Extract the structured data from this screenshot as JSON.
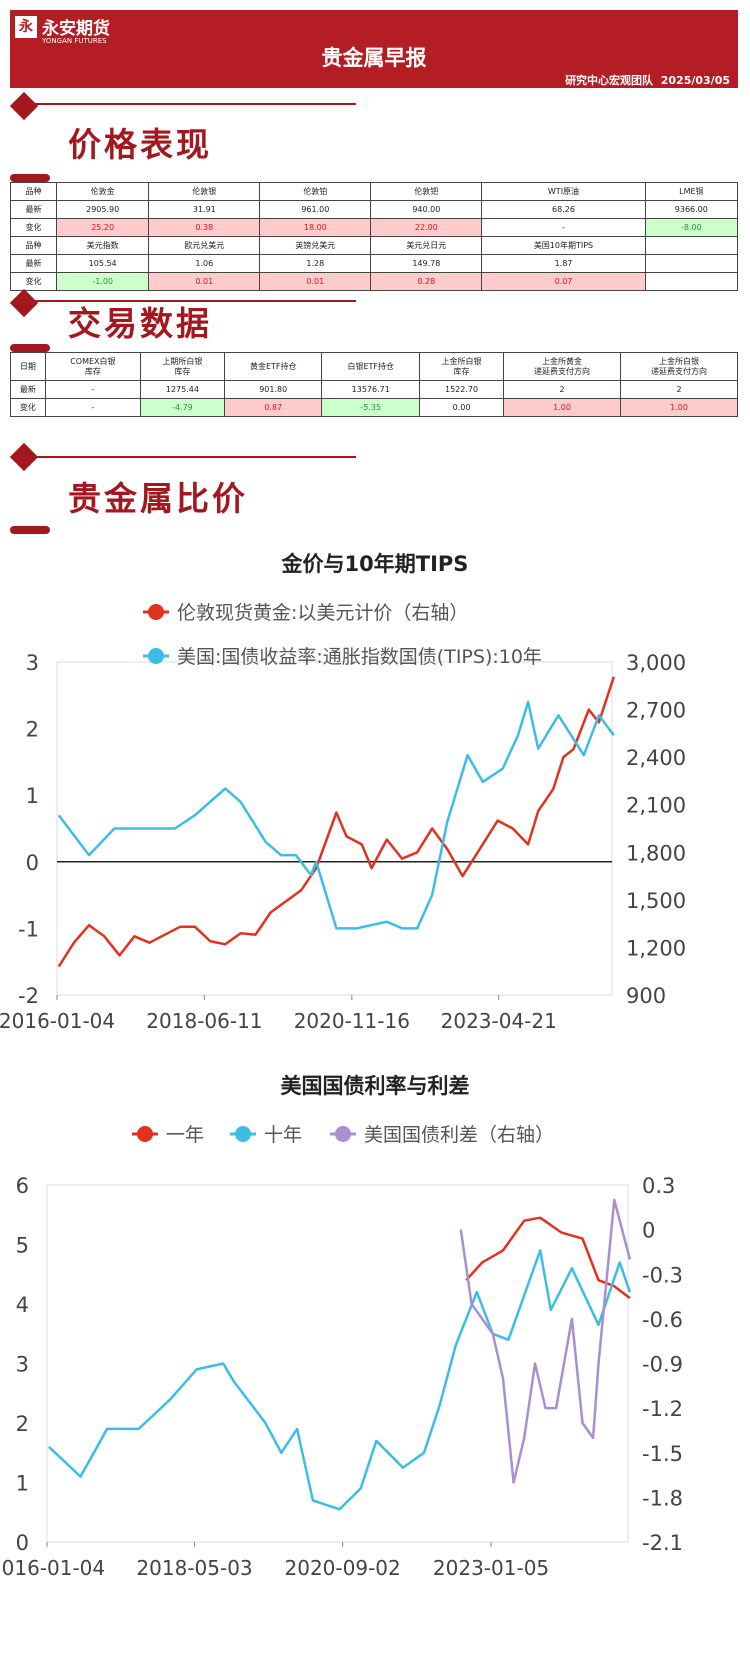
{
  "header": {
    "logo_mark": "永",
    "logo_cn": "永安期货",
    "logo_en": "YONGAN FUTURES",
    "title": "贵金属早报",
    "team": "研究中心宏观团队",
    "date": "2025/03/05"
  },
  "sections": {
    "price": "价格表现",
    "trade": "交易数据",
    "ratio": "贵金属比价"
  },
  "colors": {
    "brand": "#b41d24",
    "up_bg": "#ffcccc",
    "down_bg": "#ccffcc",
    "gold": "#e0321c",
    "tips": "#3dbde6",
    "spread": "#a98fd0"
  },
  "price_table": {
    "rows": [
      {
        "label": "品种",
        "cells": [
          {
            "v": "伦敦金"
          },
          {
            "v": "伦敦银"
          },
          {
            "v": "伦敦铂"
          },
          {
            "v": "伦敦钯"
          },
          {
            "v": "WTI原油"
          },
          {
            "v": "LME铜"
          }
        ]
      },
      {
        "label": "最新",
        "cells": [
          {
            "v": "2905.90"
          },
          {
            "v": "31.91"
          },
          {
            "v": "961.00"
          },
          {
            "v": "940.00"
          },
          {
            "v": "68.26"
          },
          {
            "v": "9366.00"
          }
        ]
      },
      {
        "label": "变化",
        "cells": [
          {
            "v": "25.20",
            "s": "up"
          },
          {
            "v": "0.38",
            "s": "up"
          },
          {
            "v": "18.00",
            "s": "up"
          },
          {
            "v": "22.00",
            "s": "up"
          },
          {
            "v": "-"
          },
          {
            "v": "-8.00",
            "s": "dn"
          }
        ]
      },
      {
        "label": "品种",
        "cells": [
          {
            "v": "美元指数"
          },
          {
            "v": "欧元兑美元"
          },
          {
            "v": "英镑兑美元"
          },
          {
            "v": "美元兑日元"
          },
          {
            "v": "美国10年期TIPS"
          },
          {
            "v": ""
          }
        ]
      },
      {
        "label": "最新",
        "cells": [
          {
            "v": "105.54"
          },
          {
            "v": "1.06"
          },
          {
            "v": "1.28"
          },
          {
            "v": "149.78"
          },
          {
            "v": "1.87"
          },
          {
            "v": ""
          }
        ]
      },
      {
        "label": "变化",
        "cells": [
          {
            "v": "-1.00",
            "s": "dn"
          },
          {
            "v": "0.01",
            "s": "up"
          },
          {
            "v": "0.01",
            "s": "up"
          },
          {
            "v": "0.28",
            "s": "up"
          },
          {
            "v": "0.07",
            "s": "up"
          },
          {
            "v": ""
          }
        ]
      }
    ]
  },
  "trade_table": {
    "header": [
      "日期",
      "COMEX白银\n库存",
      "上期所白银\n库存",
      "黄金ETF持仓",
      "白银ETF持仓",
      "上金所白银\n库存",
      "上金所黄金\n递延费支付方向",
      "上金所白银\n递延费支付方向"
    ],
    "rows": [
      {
        "label": "最新",
        "cells": [
          {
            "v": "-"
          },
          {
            "v": "1275.44"
          },
          {
            "v": "901.80"
          },
          {
            "v": "13576.71"
          },
          {
            "v": "1522.70"
          },
          {
            "v": "2"
          },
          {
            "v": "2"
          }
        ]
      },
      {
        "label": "变化",
        "cells": [
          {
            "v": "-"
          },
          {
            "v": "-4.79",
            "s": "dn"
          },
          {
            "v": "0.87",
            "s": "up"
          },
          {
            "v": "-5.35",
            "s": "dn"
          },
          {
            "v": "0.00"
          },
          {
            "v": "1.00",
            "s": "up"
          },
          {
            "v": "1.00",
            "s": "up"
          }
        ]
      }
    ]
  },
  "chart_data": [
    {
      "type": "line",
      "title": "金价与10年期TIPS",
      "x_ticks": [
        "2016-01-04",
        "2018-06-11",
        "2020-11-16",
        "2023-04-21"
      ],
      "xlim": [
        "2016-01-04",
        "2025-03-04"
      ],
      "y_left": {
        "lim": [
          -2,
          3
        ],
        "ticks": [
          "3",
          "2",
          "1",
          "0",
          "-1",
          "-2"
        ]
      },
      "y_right": {
        "lim": [
          900,
          3000
        ],
        "ticks": [
          "3,000",
          "2,700",
          "2,400",
          "2,100",
          "1,800",
          "1,500",
          "1,200",
          "900"
        ]
      },
      "legend_position": "top",
      "series": [
        {
          "name": "伦敦现货黄金:以美元计价（右轴）",
          "axis": "right",
          "color": "#e0321c",
          "x": [
            "2016-01",
            "2016-04",
            "2016-07",
            "2016-10",
            "2017-01",
            "2017-04",
            "2017-07",
            "2017-10",
            "2018-01",
            "2018-04",
            "2018-07",
            "2018-10",
            "2019-01",
            "2019-04",
            "2019-07",
            "2019-10",
            "2020-01",
            "2020-04",
            "2020-08",
            "2020-10",
            "2021-01",
            "2021-03",
            "2021-06",
            "2021-09",
            "2021-12",
            "2022-03",
            "2022-06",
            "2022-09",
            "2022-12",
            "2023-04",
            "2023-07",
            "2023-10",
            "2023-12",
            "2024-03",
            "2024-05",
            "2024-07",
            "2024-10",
            "2024-12",
            "2025-03"
          ],
          "y": [
            1080,
            1230,
            1340,
            1270,
            1150,
            1270,
            1230,
            1280,
            1330,
            1330,
            1240,
            1220,
            1290,
            1280,
            1420,
            1490,
            1560,
            1700,
            2050,
            1900,
            1850,
            1700,
            1880,
            1760,
            1800,
            1950,
            1820,
            1650,
            1800,
            2000,
            1950,
            1850,
            2060,
            2200,
            2400,
            2450,
            2700,
            2620,
            2906
          ]
        },
        {
          "name": "美国:国债收益率:通胀指数国债(TIPS):10年",
          "axis": "left",
          "color": "#3dbde6",
          "x": [
            "2016-01",
            "2016-07",
            "2016-12",
            "2017-06",
            "2017-12",
            "2018-04",
            "2018-10",
            "2019-01",
            "2019-06",
            "2019-09",
            "2019-12",
            "2020-03",
            "2020-04",
            "2020-08",
            "2020-12",
            "2021-06",
            "2021-09",
            "2021-12",
            "2022-03",
            "2022-06",
            "2022-10",
            "2023-01",
            "2023-05",
            "2023-08",
            "2023-10",
            "2023-12",
            "2024-04",
            "2024-09",
            "2024-12",
            "2025-03"
          ],
          "y": [
            0.7,
            0.1,
            0.5,
            0.5,
            0.5,
            0.7,
            1.1,
            0.9,
            0.3,
            0.1,
            0.1,
            -0.2,
            0.0,
            -1.0,
            -1.0,
            -0.9,
            -1.0,
            -1.0,
            -0.5,
            0.6,
            1.6,
            1.2,
            1.4,
            1.9,
            2.4,
            1.7,
            2.2,
            1.6,
            2.2,
            1.9
          ]
        }
      ]
    },
    {
      "type": "line",
      "title": "美国国债利率与利差",
      "x_ticks": [
        "2016-01-04",
        "2018-05-03",
        "2020-09-02",
        "2023-01-05"
      ],
      "xlim": [
        "2016-01-04",
        "2025-03-04"
      ],
      "y_left": {
        "lim": [
          0,
          6
        ],
        "ticks": [
          "6",
          "5",
          "4",
          "3",
          "2",
          "1",
          "0"
        ]
      },
      "y_right": {
        "lim": [
          -2.1,
          0.3
        ],
        "ticks": [
          "0.3",
          "0",
          "-0.3",
          "-0.6",
          "-0.9",
          "-1.2",
          "-1.5",
          "-1.8",
          "-2.1"
        ]
      },
      "legend_position": "top",
      "series": [
        {
          "name": "一年",
          "axis": "left",
          "color": "#e0321c",
          "x": [
            "2022-08",
            "2022-11",
            "2023-03",
            "2023-07",
            "2023-10",
            "2024-02",
            "2024-06",
            "2024-09",
            "2024-12",
            "2025-03"
          ],
          "y": [
            4.4,
            4.7,
            4.9,
            5.4,
            5.45,
            5.2,
            5.1,
            4.4,
            4.3,
            4.1
          ]
        },
        {
          "name": "十年",
          "axis": "left",
          "color": "#3dbde6",
          "x": [
            "2016-01",
            "2016-07",
            "2016-12",
            "2017-06",
            "2017-12",
            "2018-05",
            "2018-10",
            "2018-12",
            "2019-06",
            "2019-09",
            "2019-12",
            "2020-03",
            "2020-08",
            "2020-12",
            "2021-03",
            "2021-08",
            "2021-12",
            "2022-03",
            "2022-06",
            "2022-10",
            "2023-01",
            "2023-04",
            "2023-10",
            "2023-12",
            "2024-04",
            "2024-09",
            "2025-01",
            "2025-03"
          ],
          "y": [
            1.6,
            1.1,
            1.9,
            1.9,
            2.4,
            2.9,
            3.0,
            2.7,
            2.0,
            1.5,
            1.9,
            0.7,
            0.55,
            0.9,
            1.7,
            1.25,
            1.5,
            2.3,
            3.3,
            4.2,
            3.5,
            3.4,
            4.9,
            3.9,
            4.6,
            3.65,
            4.7,
            4.2
          ]
        },
        {
          "name": "美国国债利差（右轴）",
          "axis": "right",
          "color": "#a98fd0",
          "x": [
            "2022-07",
            "2022-09",
            "2022-11",
            "2023-01",
            "2023-03",
            "2023-05",
            "2023-07",
            "2023-09",
            "2023-11",
            "2024-01",
            "2024-04",
            "2024-06",
            "2024-08",
            "2024-09",
            "2024-12",
            "2025-03"
          ],
          "y": [
            0.0,
            -0.5,
            -0.6,
            -0.7,
            -1.0,
            -1.7,
            -1.4,
            -0.9,
            -1.2,
            -1.2,
            -0.6,
            -1.3,
            -1.4,
            -0.9,
            0.2,
            -0.2
          ]
        }
      ]
    }
  ]
}
